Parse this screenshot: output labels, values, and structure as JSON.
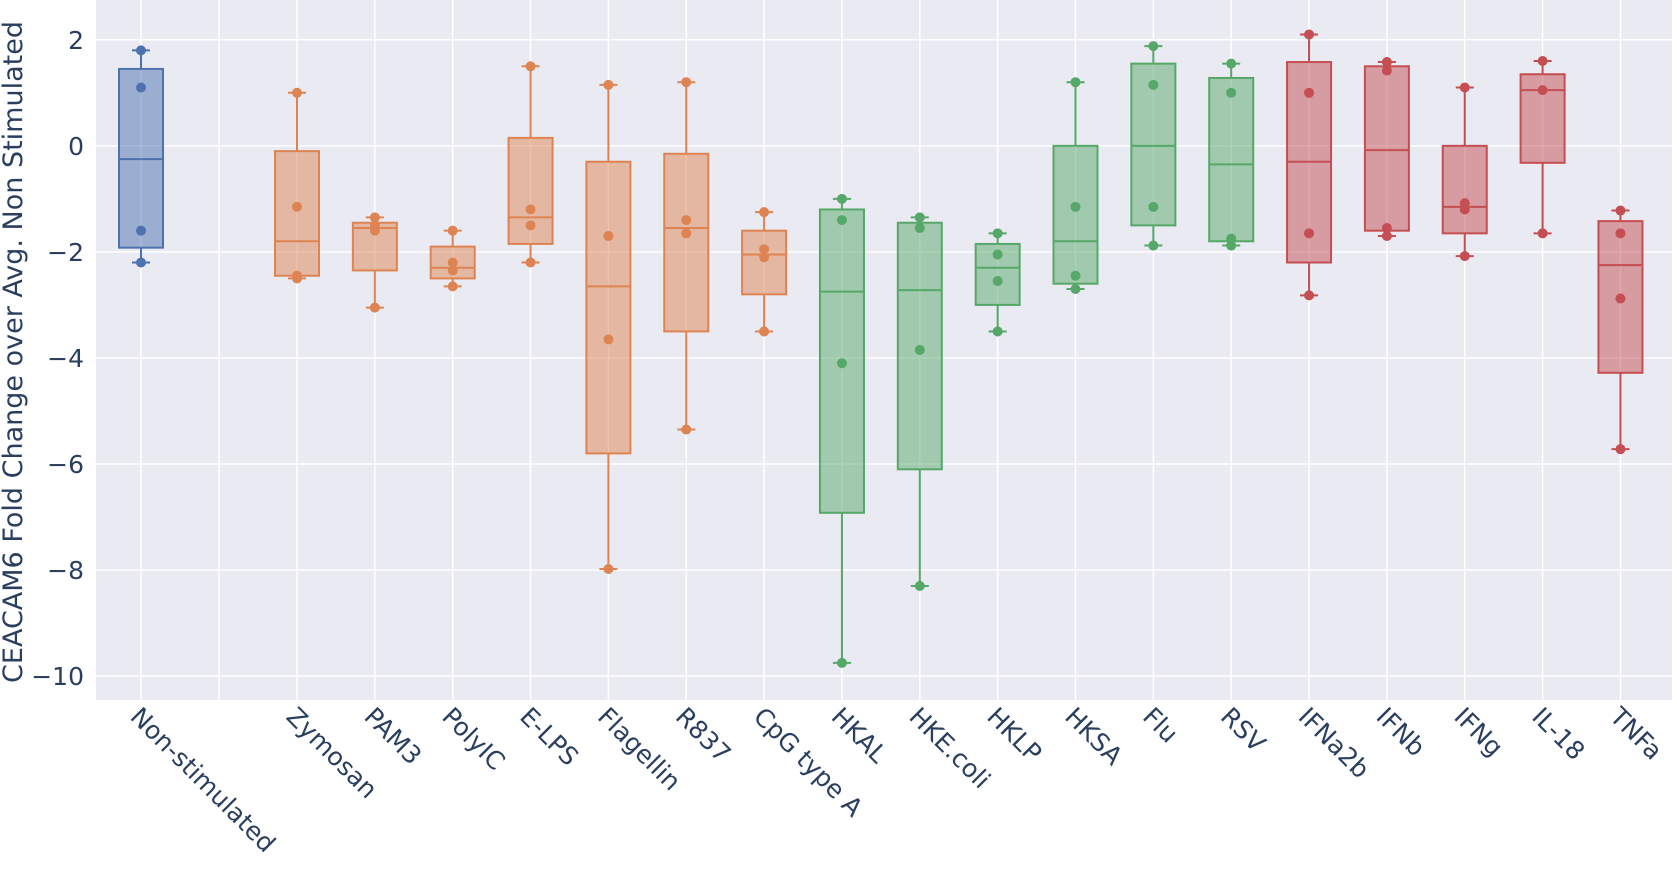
{
  "chart_data": {
    "type": "box",
    "title": "",
    "xlabel": "",
    "ylabel": "CEACAM6 Fold Change over Avg. Non Stimulated",
    "ylim": [
      -10.45,
      2.75
    ],
    "yticks": [
      2,
      0,
      -2,
      -4,
      -6,
      -8,
      -10
    ],
    "ytick_labels": [
      "2",
      "0",
      "−2",
      "−4",
      "−6",
      "−8",
      "−10"
    ],
    "grid": true,
    "legend": "none",
    "colors": {
      "blue": "#4c72b0",
      "orange": "#dd8452",
      "green": "#55a868",
      "red": "#c44e52",
      "plot_background": "#eaeaf2",
      "grid": "#ffffff"
    },
    "categories": [
      "Non-stimulated",
      "Zymosan",
      "PAM3",
      "PolyIC",
      "E-LPS",
      "Flagellin",
      "R837",
      "CpG type A",
      "HKAL",
      "HKE.coli",
      "HKLP",
      "HKSA",
      "Flu",
      "RSV",
      "IFNa2b",
      "IFNb",
      "IFNg",
      "IL-18",
      "TNFa"
    ],
    "boxes": [
      {
        "label": "Non-stimulated",
        "color": "blue",
        "q1": -1.92,
        "median": -0.25,
        "q3": 1.45,
        "whisker_low": -2.2,
        "whisker_high": 1.8,
        "points": [
          1.8,
          1.1,
          -1.6,
          -2.2
        ]
      },
      {
        "label": "Zymosan",
        "color": "orange",
        "q1": -2.45,
        "median": -1.8,
        "q3": -0.1,
        "whisker_low": -2.5,
        "whisker_high": 1.0,
        "points": [
          1.0,
          -1.15,
          -2.45,
          -2.5
        ]
      },
      {
        "label": "PAM3",
        "color": "orange",
        "q1": -2.35,
        "median": -1.55,
        "q3": -1.45,
        "whisker_low": -3.05,
        "whisker_high": -1.35,
        "points": [
          -1.35,
          -1.5,
          -1.6,
          -3.05
        ]
      },
      {
        "label": "PolyIC",
        "color": "orange",
        "q1": -2.5,
        "median": -2.3,
        "q3": -1.9,
        "whisker_low": -2.65,
        "whisker_high": -1.6,
        "points": [
          -1.6,
          -2.2,
          -2.35,
          -2.65
        ]
      },
      {
        "label": "E-LPS",
        "color": "orange",
        "q1": -1.85,
        "median": -1.35,
        "q3": 0.15,
        "whisker_low": -2.2,
        "whisker_high": 1.5,
        "points": [
          1.5,
          -1.2,
          -1.5,
          -2.2
        ]
      },
      {
        "label": "Flagellin",
        "color": "orange",
        "q1": -5.8,
        "median": -2.65,
        "q3": -0.3,
        "whisker_low": -7.98,
        "whisker_high": 1.15,
        "points": [
          1.15,
          -1.7,
          -3.65,
          -7.98
        ]
      },
      {
        "label": "R837",
        "color": "orange",
        "q1": -3.5,
        "median": -1.55,
        "q3": -0.15,
        "whisker_low": -5.35,
        "whisker_high": 1.2,
        "points": [
          1.2,
          -1.4,
          -1.65,
          -5.35
        ]
      },
      {
        "label": "CpG type A",
        "color": "orange",
        "q1": -2.8,
        "median": -2.05,
        "q3": -1.6,
        "whisker_low": -3.5,
        "whisker_high": -1.25,
        "points": [
          -1.25,
          -1.95,
          -2.1,
          -3.5
        ]
      },
      {
        "label": "HKAL",
        "color": "green",
        "q1": -6.92,
        "median": -2.75,
        "q3": -1.2,
        "whisker_low": -9.75,
        "whisker_high": -1.0,
        "points": [
          -1.0,
          -1.4,
          -4.1,
          -9.75
        ]
      },
      {
        "label": "HKE.coli",
        "color": "green",
        "q1": -6.1,
        "median": -2.72,
        "q3": -1.45,
        "whisker_low": -8.3,
        "whisker_high": -1.35,
        "points": [
          -1.35,
          -1.55,
          -3.85,
          -8.3
        ]
      },
      {
        "label": "HKLP",
        "color": "green",
        "q1": -3.0,
        "median": -2.3,
        "q3": -1.85,
        "whisker_low": -3.5,
        "whisker_high": -1.65,
        "points": [
          -1.65,
          -2.05,
          -2.55,
          -3.5
        ]
      },
      {
        "label": "HKSA",
        "color": "green",
        "q1": -2.6,
        "median": -1.8,
        "q3": 0.0,
        "whisker_low": -2.7,
        "whisker_high": 1.2,
        "points": [
          1.2,
          -1.15,
          -2.45,
          -2.7
        ]
      },
      {
        "label": "Flu",
        "color": "green",
        "q1": -1.5,
        "median": 0.0,
        "q3": 1.55,
        "whisker_low": -1.88,
        "whisker_high": 1.88,
        "points": [
          1.88,
          1.15,
          -1.15,
          -1.88
        ]
      },
      {
        "label": "RSV",
        "color": "green",
        "q1": -1.8,
        "median": -0.35,
        "q3": 1.28,
        "whisker_low": -1.88,
        "whisker_high": 1.55,
        "points": [
          1.55,
          1.0,
          -1.75,
          -1.88
        ]
      },
      {
        "label": "IFNa2b",
        "color": "red",
        "q1": -2.2,
        "median": -0.3,
        "q3": 1.58,
        "whisker_low": -2.82,
        "whisker_high": 2.1,
        "points": [
          2.1,
          1.0,
          -1.65,
          -2.82
        ]
      },
      {
        "label": "IFNb",
        "color": "red",
        "q1": -1.6,
        "median": -0.08,
        "q3": 1.5,
        "whisker_low": -1.7,
        "whisker_high": 1.58,
        "points": [
          1.58,
          1.42,
          -1.55,
          -1.7
        ]
      },
      {
        "label": "IFNg",
        "color": "red",
        "q1": -1.65,
        "median": -1.15,
        "q3": 0.0,
        "whisker_low": -2.08,
        "whisker_high": 1.1,
        "points": [
          1.1,
          -1.08,
          -1.2,
          -2.08
        ]
      },
      {
        "label": "IL-18",
        "color": "red",
        "q1": -0.32,
        "median": 1.05,
        "q3": 1.35,
        "whisker_low": -1.65,
        "whisker_high": 1.6,
        "points": [
          1.6,
          1.05,
          -1.65
        ]
      },
      {
        "label": "TNFa",
        "color": "red",
        "q1": -4.28,
        "median": -2.25,
        "q3": -1.42,
        "whisker_low": -5.72,
        "whisker_high": -1.22,
        "points": [
          -1.22,
          -1.65,
          -2.88,
          -5.72
        ]
      }
    ]
  }
}
